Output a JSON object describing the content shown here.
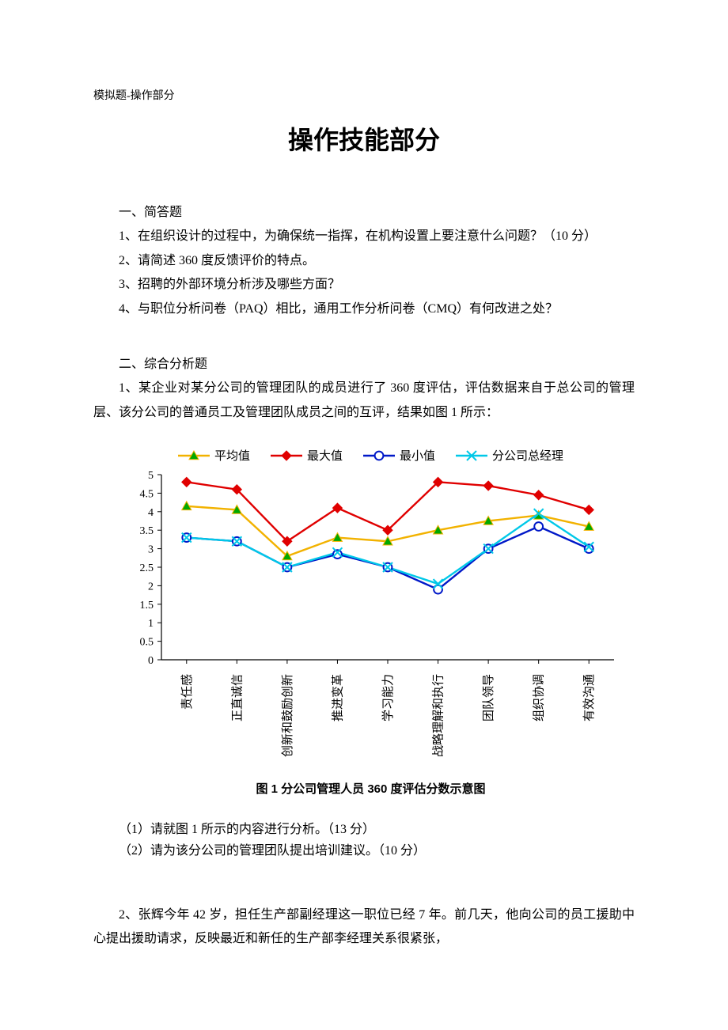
{
  "header": "模拟题-操作部分",
  "title": "操作技能部分",
  "section1": {
    "heading": "一、简答题",
    "q1": "1、在组织设计的过程中，为确保统一指挥，在机构设置上要注意什么问题？（10 分）",
    "q2": "2、请简述 360 度反馈评价的特点。",
    "q3": "3、招聘的外部环境分析涉及哪些方面？",
    "q4": "4、与职位分析问卷（PAQ）相比，通用工作分析问卷（CMQ）有何改进之处？"
  },
  "section2": {
    "heading": "二、综合分析题",
    "q1_intro": "1、某企业对某分公司的管理团队的成员进行了 360 度评估，评估数据来自于总公司的管理层、该分公司的普通员工及管理团队成员之间的互评，结果如图 1 所示：",
    "q1_sub1": "（1）请就图 1 所示的内容进行分析。（13 分）",
    "q1_sub2": "（2）请为该分公司的管理团队提出培训建议。（10 分）",
    "q2_intro": "2、张辉今年 42 岁，担任生产部副经理这一职位已经 7 年。前几天，他向公司的员工援助中心提出援助请求，反映最近和新任的生产部李经理关系很紧张，"
  },
  "chart": {
    "type": "line",
    "caption": "图 1  分公司管理人员 360 度评估分数示意图",
    "background_color": "#ffffff",
    "axis_color": "#000000",
    "tick_fontsize": 14,
    "label_fontsize": 15,
    "ylim": [
      0,
      5
    ],
    "ytick_step": 0.5,
    "yticks": [
      0,
      0.5,
      1,
      1.5,
      2,
      2.5,
      3,
      3.5,
      4,
      4.5,
      5
    ],
    "categories": [
      "责任感",
      "正直诚信",
      "创新和鼓励创新",
      "推进变革",
      "学习能力",
      "战略理解和执行",
      "团队领导",
      "组织协调",
      "有效沟通"
    ],
    "line_width": 2.4,
    "marker_size": 6,
    "series": [
      {
        "name": "平均值",
        "color": "#f2b200",
        "marker": "triangle",
        "fill": "#00a800",
        "values": [
          4.15,
          4.05,
          2.8,
          3.3,
          3.2,
          3.5,
          3.75,
          3.9,
          3.6
        ]
      },
      {
        "name": "最大值",
        "color": "#e00000",
        "marker": "diamond",
        "fill": "#e00000",
        "values": [
          4.8,
          4.6,
          3.2,
          4.1,
          3.5,
          4.8,
          4.7,
          4.45,
          4.05
        ]
      },
      {
        "name": "最小值",
        "color": "#0018c8",
        "marker": "circle",
        "fill": "#ffffff",
        "values": [
          3.3,
          3.2,
          2.5,
          2.85,
          2.5,
          1.9,
          3.0,
          3.6,
          3.0
        ]
      },
      {
        "name": "分公司总经理",
        "color": "#00c8e8",
        "marker": "x",
        "fill": "#00c8e8",
        "values": [
          3.3,
          3.2,
          2.5,
          2.9,
          2.5,
          2.05,
          3.0,
          3.95,
          3.05
        ]
      }
    ]
  }
}
